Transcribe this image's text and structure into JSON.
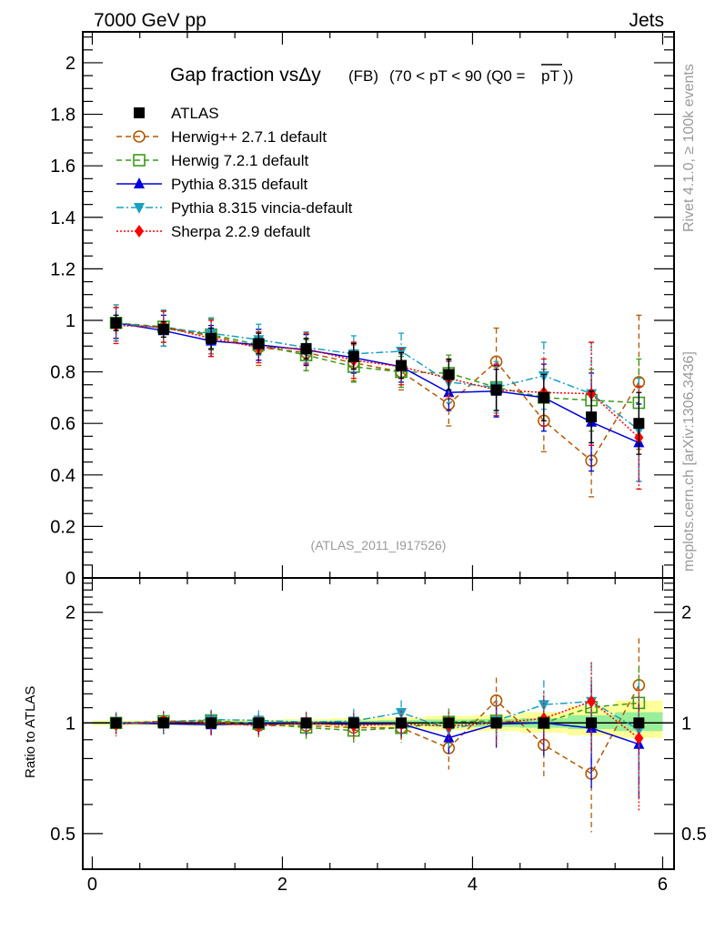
{
  "chart_data": [
    {
      "type": "scatter",
      "panel": "main",
      "title": "Gap fraction vsΔy",
      "title_suffix": "(FB)",
      "title_range": "(70 < pT <  90 (Q0 =",
      "title_overline": "pT",
      "title_end": "))",
      "top_left_label": "7000 GeV pp",
      "top_right_label": "Jets",
      "side_label_top": "Rivet 4.1.0, ≥ 100k events",
      "side_label_bottom": "mcplots.cern.ch [arXiv:1306.3436]",
      "watermark": "(ATLAS_2011_I917526)",
      "xlabel": "",
      "ylabel": "",
      "xlim": [
        -0.1,
        6.12
      ],
      "ylim": [
        0,
        2.12
      ],
      "yticks": [
        0,
        0.2,
        0.4,
        0.6,
        0.8,
        1,
        1.2,
        1.4,
        1.6,
        1.8,
        2
      ],
      "ytick_labels": [
        "0",
        "0.2",
        "0.4",
        "0.6",
        "0.8",
        "1",
        "1.2",
        "1.4",
        "1.6",
        "1.8",
        "2"
      ],
      "legend_position": "top-left",
      "x": [
        0.25,
        0.75,
        1.25,
        1.75,
        2.25,
        2.75,
        3.25,
        3.75,
        4.25,
        4.75,
        5.25,
        5.75
      ],
      "series": [
        {
          "name": "ATLAS",
          "color": "#000000",
          "marker": "square",
          "line": "none",
          "values": [
            0.99,
            0.965,
            0.93,
            0.91,
            0.89,
            0.86,
            0.825,
            0.79,
            0.73,
            0.7,
            0.625,
            0.6
          ],
          "errors": [
            0.03,
            0.03,
            0.04,
            0.04,
            0.04,
            0.05,
            0.05,
            0.06,
            0.08,
            0.09,
            0.1,
            0.12
          ]
        },
        {
          "name": "Herwig++ 2.7.1 default",
          "color": "#b35900",
          "marker": "open-circle",
          "line": "dashed",
          "values": [
            0.99,
            0.97,
            0.94,
            0.895,
            0.875,
            0.835,
            0.8,
            0.675,
            0.84,
            0.61,
            0.455,
            0.76
          ],
          "errors": [
            0.07,
            0.07,
            0.07,
            0.07,
            0.07,
            0.07,
            0.07,
            0.085,
            0.13,
            0.12,
            0.14,
            0.26
          ]
        },
        {
          "name": "Herwig 7.2.1 default",
          "color": "#3a9a1a",
          "marker": "open-square",
          "line": "dashed",
          "values": [
            0.99,
            0.975,
            0.945,
            0.905,
            0.865,
            0.82,
            0.8,
            0.795,
            0.74,
            0.7,
            0.69,
            0.68
          ],
          "errors": [
            0.06,
            0.06,
            0.06,
            0.06,
            0.06,
            0.06,
            0.06,
            0.07,
            0.09,
            0.11,
            0.12,
            0.17
          ]
        },
        {
          "name": "Pythia 8.315 default",
          "color": "#0000dd",
          "marker": "triangle-up",
          "line": "solid",
          "values": [
            0.99,
            0.96,
            0.92,
            0.905,
            0.885,
            0.855,
            0.82,
            0.72,
            0.725,
            0.7,
            0.605,
            0.525
          ],
          "errors": [
            0.06,
            0.06,
            0.06,
            0.06,
            0.06,
            0.06,
            0.06,
            0.07,
            0.1,
            0.13,
            0.19,
            0.15
          ]
        },
        {
          "name": "Pythia 8.315 vincia-default",
          "color": "#1aa0c0",
          "marker": "triangle-down",
          "line": "dashdot",
          "values": [
            0.99,
            0.97,
            0.95,
            0.925,
            0.895,
            0.87,
            0.88,
            0.76,
            0.74,
            0.785,
            0.715,
            0.575
          ],
          "errors": [
            0.07,
            0.07,
            0.06,
            0.06,
            0.06,
            0.07,
            0.07,
            0.08,
            0.1,
            0.13,
            0.2,
            0.2
          ]
        },
        {
          "name": "Sherpa 2.2.9 default",
          "color": "#ff0000",
          "marker": "diamond",
          "line": "dotted",
          "values": [
            0.98,
            0.975,
            0.93,
            0.895,
            0.89,
            0.845,
            0.82,
            0.775,
            0.73,
            0.72,
            0.715,
            0.545
          ],
          "errors": [
            0.07,
            0.06,
            0.07,
            0.06,
            0.06,
            0.07,
            0.07,
            0.07,
            0.1,
            0.13,
            0.2,
            0.2
          ]
        }
      ]
    },
    {
      "type": "scatter",
      "panel": "ratio",
      "ylabel": "Ratio to ATLAS",
      "yscale": "log",
      "ylim": [
        0.4,
        2.48
      ],
      "yticks": [
        0.5,
        1,
        2
      ],
      "ytick_labels": [
        "0.5",
        "1",
        "2"
      ],
      "xticks": [
        0,
        2,
        4,
        6
      ],
      "xtick_labels": [
        "0",
        "2",
        "4",
        "6"
      ],
      "xlim": [
        -0.1,
        6.12
      ],
      "band_total": {
        "color": "#ffff99",
        "lo": [
          0.985,
          0.985,
          0.98,
          0.98,
          0.975,
          0.97,
          0.965,
          0.955,
          0.95,
          0.94,
          0.925,
          0.91
        ],
        "hi": [
          1.015,
          1.015,
          1.02,
          1.02,
          1.025,
          1.03,
          1.035,
          1.045,
          1.05,
          1.07,
          1.11,
          1.15
        ]
      },
      "band_stat": {
        "color": "#99ee99",
        "lo": [
          0.993,
          0.993,
          0.99,
          0.99,
          0.988,
          0.985,
          0.982,
          0.978,
          0.975,
          0.97,
          0.962,
          0.95
        ],
        "hi": [
          1.007,
          1.007,
          1.01,
          1.01,
          1.012,
          1.015,
          1.018,
          1.022,
          1.025,
          1.03,
          1.05,
          1.07
        ]
      }
    }
  ]
}
